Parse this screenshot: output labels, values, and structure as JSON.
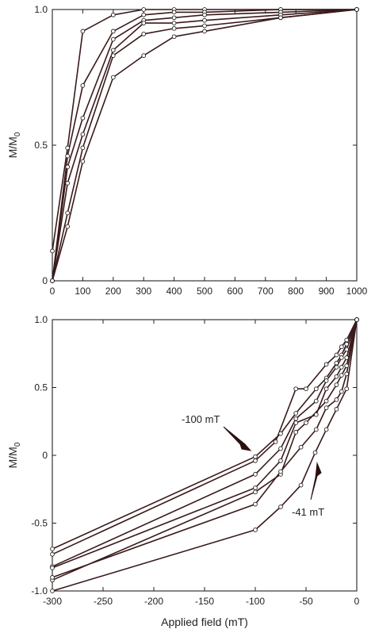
{
  "chart_data": [
    {
      "type": "line",
      "ylabel_main": "M/M",
      "ylabel_sub": "0",
      "xlim": [
        0,
        1000
      ],
      "ylim": [
        0,
        1.0
      ],
      "xticks": [
        0,
        100,
        200,
        300,
        400,
        500,
        600,
        700,
        800,
        900,
        1000
      ],
      "xtick_labels": [
        "0",
        "100",
        "200",
        "300",
        "400",
        "500",
        "600",
        "700",
        "800",
        "900",
        "1000"
      ],
      "yticks": [
        0,
        0.5,
        1.0
      ],
      "ytick_labels": [
        "0",
        "0.5",
        "1.0"
      ],
      "series": [
        {
          "x": [
            0,
            50,
            100,
            200,
            300,
            400,
            500,
            750,
            1000
          ],
          "y": [
            0.11,
            0.49,
            0.92,
            0.98,
            1.0,
            1.0,
            1.0,
            1.0,
            1.0
          ]
        },
        {
          "x": [
            0,
            50,
            100,
            200,
            300,
            400,
            500,
            750,
            1000
          ],
          "y": [
            0,
            0.46,
            0.72,
            0.92,
            0.98,
            0.99,
            0.99,
            1.0,
            1.0
          ]
        },
        {
          "x": [
            0,
            50,
            100,
            200,
            300,
            400,
            500,
            750,
            1000
          ],
          "y": [
            0,
            0.42,
            0.6,
            0.89,
            0.96,
            0.97,
            0.98,
            0.99,
            1.0
          ]
        },
        {
          "x": [
            0,
            50,
            100,
            200,
            300,
            400,
            500,
            750,
            1000
          ],
          "y": [
            0,
            0.36,
            0.54,
            0.85,
            0.95,
            0.95,
            0.96,
            0.98,
            1.0
          ]
        },
        {
          "x": [
            0,
            50,
            100,
            200,
            300,
            400,
            500,
            750,
            1000
          ],
          "y": [
            0,
            0.25,
            0.49,
            0.83,
            0.91,
            0.93,
            0.94,
            0.97,
            1.0
          ]
        },
        {
          "x": [
            0,
            50,
            100,
            200,
            300,
            400,
            500,
            750,
            1000
          ],
          "y": [
            0,
            0.2,
            0.44,
            0.75,
            0.83,
            0.9,
            0.92,
            0.97,
            1.0
          ]
        }
      ]
    },
    {
      "type": "line",
      "xlabel": "Applied field (mT)",
      "ylabel_main": "M/M",
      "ylabel_sub": "0",
      "xlim": [
        -300,
        0
      ],
      "ylim": [
        -1.0,
        1.0
      ],
      "xticks": [
        -300,
        -250,
        -200,
        -150,
        -100,
        -50,
        0
      ],
      "xtick_labels": [
        "-300",
        "-250",
        "-200",
        "-150",
        "-100",
        "-50",
        "0"
      ],
      "yticks": [
        -1.0,
        -0.5,
        0,
        0.5,
        1.0
      ],
      "ytick_labels": [
        "-1.0",
        "-0.5",
        "0",
        "0.5",
        "1.0"
      ],
      "annotations": [
        {
          "text": "-100 mT",
          "x": -100,
          "y": 0
        },
        {
          "text": "-41 mT",
          "x": -41,
          "y": 0
        }
      ],
      "series": [
        {
          "x": [
            -300,
            -100,
            -75,
            -60,
            -40,
            -30,
            -20,
            -15,
            -10,
            0
          ],
          "y": [
            -0.69,
            -0.01,
            0.16,
            0.31,
            0.49,
            0.57,
            0.68,
            0.74,
            0.82,
            1.0
          ]
        },
        {
          "x": [
            -300,
            -100,
            -80,
            -60,
            -50,
            -30,
            -20,
            -15,
            -10,
            0
          ],
          "y": [
            -0.73,
            -0.04,
            0.1,
            0.49,
            0.49,
            0.67,
            0.74,
            0.8,
            0.85,
            1.0
          ]
        },
        {
          "x": [
            -300,
            -100,
            -75,
            -60,
            -40,
            -30,
            -20,
            -15,
            -10,
            0
          ],
          "y": [
            -0.82,
            -0.14,
            0.05,
            0.27,
            0.4,
            0.55,
            0.65,
            0.72,
            0.78,
            1.0
          ]
        },
        {
          "x": [
            -300,
            -100,
            -75,
            -60,
            -40,
            -30,
            -20,
            -15,
            -10,
            0
          ],
          "y": [
            -0.83,
            -0.24,
            -0.04,
            0.24,
            0.3,
            0.49,
            0.58,
            0.65,
            0.72,
            1.0
          ]
        },
        {
          "x": [
            -300,
            -100,
            -75,
            -60,
            -50,
            -30,
            -20,
            -15,
            -10,
            0
          ],
          "y": [
            -0.92,
            -0.27,
            -0.14,
            0.17,
            0.24,
            0.4,
            0.52,
            0.59,
            0.66,
            1.0
          ]
        },
        {
          "x": [
            -300,
            -100,
            -75,
            -55,
            -40,
            -30,
            -20,
            -15,
            -10,
            0
          ],
          "y": [
            -0.9,
            -0.36,
            -0.12,
            0.06,
            0.19,
            0.35,
            0.41,
            0.47,
            0.6,
            1.0
          ]
        },
        {
          "x": [
            -300,
            -100,
            -75,
            -55,
            -41,
            -30,
            -20,
            -10,
            0
          ],
          "y": [
            -1.0,
            -0.55,
            -0.38,
            -0.22,
            0.02,
            0.19,
            0.34,
            0.49,
            1.0
          ]
        }
      ]
    }
  ]
}
